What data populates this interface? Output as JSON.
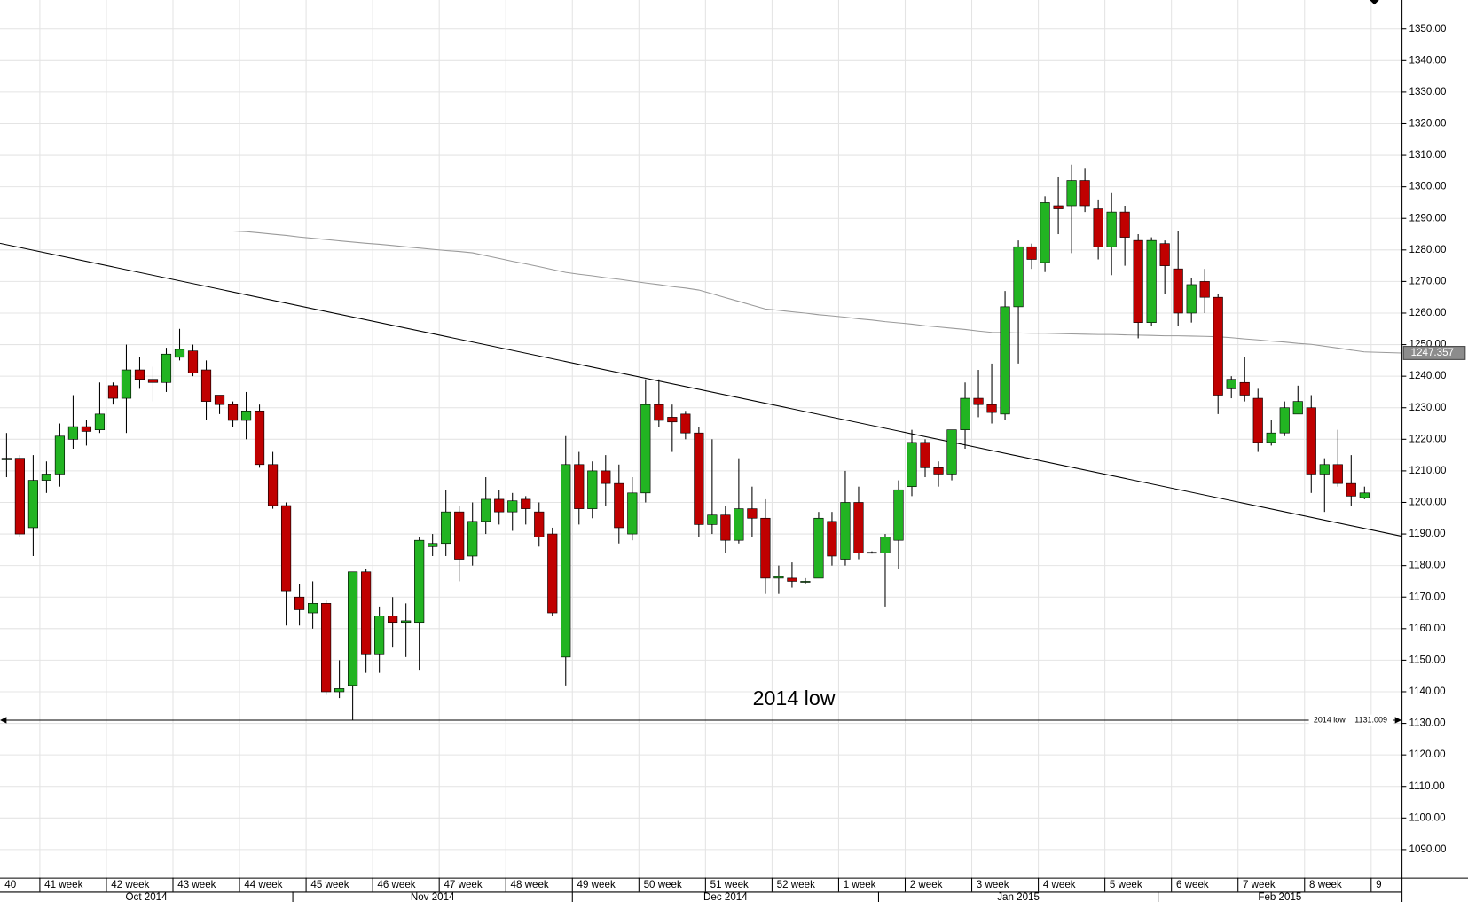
{
  "chart_data": {
    "type": "candlestick",
    "open": [
      1213.5,
      1214,
      1192,
      1207,
      1209,
      1220,
      1224,
      1223,
      1237,
      1233,
      1242,
      1239,
      1238,
      1246,
      1248,
      1242,
      1234,
      1231,
      1226,
      1229,
      1212,
      1199,
      1170,
      1165,
      1168,
      1140,
      1142,
      1178,
      1152,
      1164,
      1162,
      1162,
      1186,
      1187,
      1197,
      1183,
      1194,
      1201,
      1197,
      1201,
      1197,
      1190,
      1151,
      1212,
      1198,
      1210,
      1206,
      1190,
      1203,
      1231,
      1227,
      1228,
      1222,
      1193,
      1196,
      1188,
      1198,
      1195,
      1176,
      1176,
      1174.8,
      1176,
      1194,
      1182,
      1200,
      1184,
      1184,
      1188,
      1205,
      1219,
      1211,
      1209,
      1223,
      1233,
      1231,
      1228,
      1262,
      1281,
      1276,
      1294,
      1294,
      1302,
      1293,
      1281,
      1292,
      1283,
      1257,
      1282,
      1274,
      1260,
      1270,
      1265,
      1236,
      1238,
      1233,
      1219,
      1222,
      1228,
      1230,
      1209,
      1212,
      1206,
      1201.5
    ],
    "high": [
      1222,
      1215,
      1215,
      1213,
      1225,
      1234,
      1226,
      1238,
      1238,
      1250,
      1246,
      1243,
      1249,
      1255,
      1250,
      1245,
      1234,
      1232,
      1235,
      1231,
      1216,
      1200,
      1174,
      1175,
      1169,
      1150,
      1178,
      1179,
      1167,
      1170,
      1168,
      1189,
      1190,
      1204,
      1199,
      1200,
      1208,
      1204,
      1203,
      1202,
      1200,
      1192,
      1221,
      1216,
      1213,
      1215,
      1212,
      1208,
      1239,
      1239,
      1231,
      1229,
      1224,
      1220,
      1199,
      1214,
      1205,
      1201,
      1180,
      1181,
      1176,
      1197,
      1197,
      1210,
      1205,
      1184.5,
      1190,
      1207,
      1223,
      1220,
      1213,
      1223,
      1238,
      1242,
      1244,
      1267,
      1283,
      1282,
      1297,
      1303,
      1307,
      1306,
      1296,
      1298,
      1294,
      1285,
      1284,
      1283,
      1286,
      1271,
      1274,
      1266,
      1240,
      1246,
      1236,
      1226,
      1232,
      1237,
      1234,
      1214,
      1223,
      1215,
      1205
    ],
    "low": [
      1208,
      1189,
      1183,
      1203,
      1205,
      1217,
      1218,
      1222,
      1231,
      1222,
      1236,
      1232,
      1235,
      1245,
      1240,
      1226,
      1228,
      1224,
      1220,
      1211,
      1198,
      1161,
      1161,
      1160,
      1139,
      1138,
      1131,
      1146,
      1146,
      1154,
      1151,
      1147,
      1183,
      1183,
      1175,
      1180,
      1190,
      1193,
      1191,
      1193,
      1186,
      1164,
      1142,
      1193,
      1195,
      1199,
      1187,
      1188,
      1200,
      1224,
      1216,
      1220,
      1189,
      1190,
      1184,
      1187,
      1189,
      1171,
      1171,
      1173,
      1174,
      1176,
      1180,
      1180,
      1182,
      1183.8,
      1167,
      1179,
      1202,
      1208,
      1205,
      1207,
      1217,
      1227,
      1225,
      1226,
      1244,
      1274,
      1273,
      1285,
      1279,
      1292,
      1277,
      1272,
      1275,
      1252,
      1256,
      1266,
      1256,
      1257,
      1260,
      1228,
      1233,
      1232,
      1216,
      1218,
      1221,
      1228,
      1203,
      1197,
      1205,
      1199,
      1201
    ],
    "close": [
      1214,
      1190,
      1207,
      1209,
      1221,
      1224,
      1222.5,
      1228,
      1233,
      1242,
      1239,
      1238,
      1247,
      1248.5,
      1241,
      1232,
      1231,
      1226,
      1229,
      1212,
      1199,
      1172,
      1166,
      1168,
      1140,
      1141,
      1178,
      1152,
      1164,
      1162,
      1162.5,
      1188,
      1187,
      1197,
      1182,
      1194,
      1201,
      1197,
      1200.5,
      1198,
      1189,
      1165,
      1212,
      1198,
      1210,
      1206,
      1192,
      1203,
      1231,
      1226,
      1225.5,
      1222,
      1193,
      1196,
      1188,
      1198,
      1195,
      1176,
      1176.5,
      1175,
      1175,
      1195,
      1183,
      1200,
      1184,
      1184.2,
      1189,
      1204,
      1219,
      1211,
      1209,
      1223,
      1233,
      1231,
      1228.5,
      1262,
      1281,
      1277,
      1295,
      1293,
      1302,
      1294,
      1281,
      1292,
      1284,
      1257,
      1283,
      1275,
      1260,
      1269,
      1265,
      1234,
      1239,
      1234,
      1219,
      1222,
      1230,
      1232,
      1209,
      1212,
      1206,
      1202,
      1203
    ],
    "colors": {
      "up": "#22b422",
      "down": "#c00000"
    },
    "moving_average": {
      "color": "#9a9a9a",
      "values": [
        1286,
        1286,
        1286,
        1286,
        1286,
        1286,
        1286,
        1286,
        1286,
        1286,
        1286,
        1286,
        1286,
        1286,
        1286,
        1286,
        1286,
        1286,
        1285.8,
        1285.4,
        1285,
        1284.6,
        1284.1,
        1283.7,
        1283.3,
        1282.9,
        1282.5,
        1282.1,
        1281.8,
        1281.4,
        1281,
        1280.6,
        1280.2,
        1279.8,
        1279.5,
        1279.1,
        1278.2,
        1277.3,
        1276.4,
        1275.6,
        1274.7,
        1273.8,
        1272.9,
        1272.3,
        1271.8,
        1271.2,
        1270.7,
        1270.1,
        1269.5,
        1269,
        1268.4,
        1267.9,
        1267.3,
        1266.1,
        1264.9,
        1263.7,
        1262.5,
        1261.3,
        1260.9,
        1260.4,
        1260,
        1259.5,
        1259.1,
        1258.7,
        1258.2,
        1257.8,
        1257.3,
        1256.9,
        1256.5,
        1256,
        1255.6,
        1255.2,
        1254.8,
        1254.3,
        1253.9,
        1253.8,
        1253.7,
        1253.6,
        1253.6,
        1253.5,
        1253.4,
        1253.3,
        1253.2,
        1253.2,
        1253.1,
        1253,
        1252.9,
        1252.8,
        1252.8,
        1252.7,
        1252.6,
        1252.5,
        1252.2,
        1251.8,
        1251.5,
        1251.1,
        1250.8,
        1250.4,
        1250.1,
        1249.5,
        1248.9,
        1248.3,
        1247.7
      ],
      "last": 1247.357
    },
    "trendline": [
      1282.1,
      1189.3
    ],
    "support": {
      "label": "2014 low",
      "value": 1131.009
    },
    "week_labels": [
      "40",
      "41 week",
      "42 week",
      "43 week",
      "44 week",
      "45 week",
      "46 week",
      "47 week",
      "48 week",
      "49 week",
      "50 week",
      "51 week",
      "52 week",
      "1 week",
      "2 week",
      "3 week",
      "4 week",
      "5 week",
      "6 week",
      "7 week",
      "8 week",
      "9"
    ],
    "month_labels": [
      "Oct 2014",
      "Nov 2014",
      "Dec 2014",
      "Jan 2015",
      "Feb 2015"
    ],
    "ylim": [
      1081.1,
      1359.2
    ],
    "yticks": [
      {
        "value": 1090,
        "label": "1090.00"
      },
      {
        "value": 1100,
        "label": "1100.00"
      },
      {
        "value": 1110,
        "label": "1110.00"
      },
      {
        "value": 1120,
        "label": "1120.00"
      },
      {
        "value": 1130,
        "label": "1130.00"
      },
      {
        "value": 1140,
        "label": "1140.00"
      },
      {
        "value": 1150,
        "label": "1150.00"
      },
      {
        "value": 1160,
        "label": "1160.00"
      },
      {
        "value": 1170,
        "label": "1170.00"
      },
      {
        "value": 1180,
        "label": "1180.00"
      },
      {
        "value": 1190,
        "label": "1190.00"
      },
      {
        "value": 1200,
        "label": "1200.00"
      },
      {
        "value": 1210,
        "label": "1210.00"
      },
      {
        "value": 1220,
        "label": "1220.00"
      },
      {
        "value": 1230,
        "label": "1230.00"
      },
      {
        "value": 1240,
        "label": "1240.00"
      },
      {
        "value": 1250,
        "label": "1250.00"
      },
      {
        "value": 1260,
        "label": "1260.00"
      },
      {
        "value": 1270,
        "label": "1270.00"
      },
      {
        "value": 1280,
        "label": "1280.00"
      },
      {
        "value": 1290,
        "label": "1290.00"
      },
      {
        "value": 1300,
        "label": "1300.00"
      },
      {
        "value": 1310,
        "label": "1310.00"
      },
      {
        "value": 1320,
        "label": "1320.00"
      },
      {
        "value": 1330,
        "label": "1330.00"
      },
      {
        "value": 1340,
        "label": "1340.00"
      },
      {
        "value": 1350,
        "label": "1350.00"
      }
    ],
    "grid": true
  }
}
